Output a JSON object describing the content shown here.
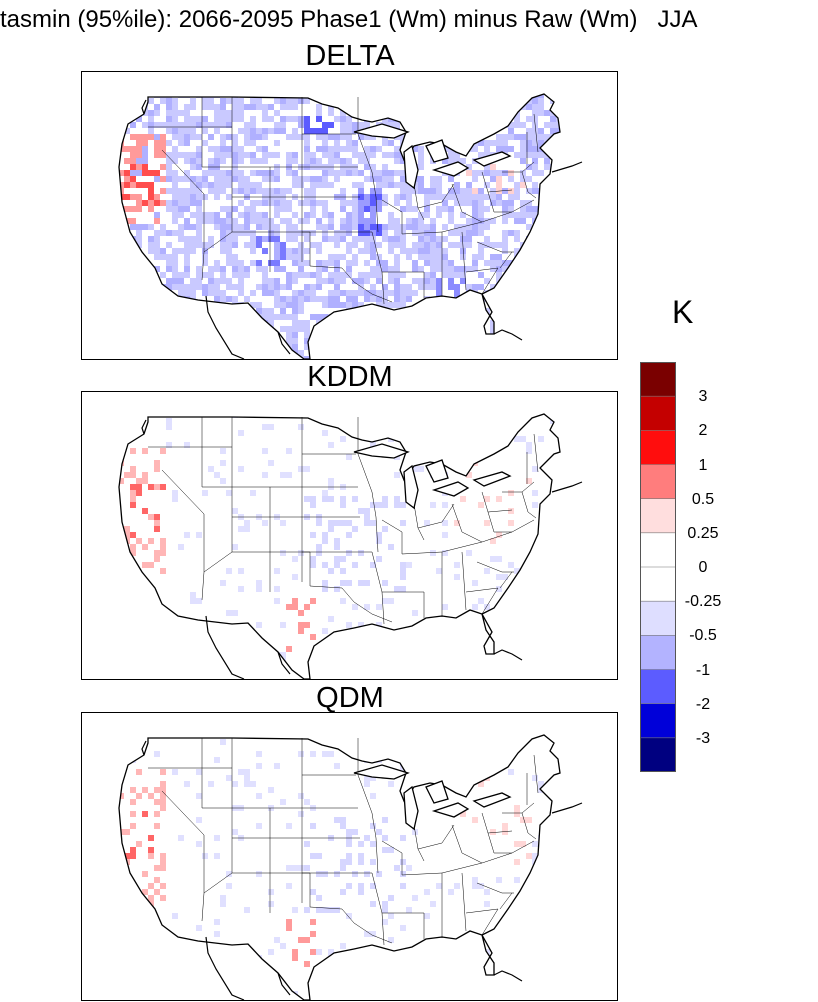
{
  "title": {
    "text": "tasmin (95%ile): 2066-2095 Phase1 (Wm) minus Raw (Wm)",
    "season": "JJA"
  },
  "panels": [
    {
      "title": "DELTA",
      "pattern": "widespread-cool"
    },
    {
      "title": "KDDM",
      "pattern": "near-neutral"
    },
    {
      "title": "QDM",
      "pattern": "near-neutral"
    }
  ],
  "colorbar": {
    "unit": "K",
    "boundaries": [
      "3",
      "2",
      "1",
      "0.5",
      "0.25",
      "0",
      "-0.25",
      "-0.5",
      "-1",
      "-2",
      "-3"
    ],
    "colors": [
      "#7a0000",
      "#c40000",
      "#ff0d0d",
      "#ff7d7d",
      "#ffdede",
      "#ffffff",
      "#ffffff",
      "#dedeff",
      "#b3b3ff",
      "#5c5cff",
      "#0000d9",
      "#000080"
    ]
  }
}
